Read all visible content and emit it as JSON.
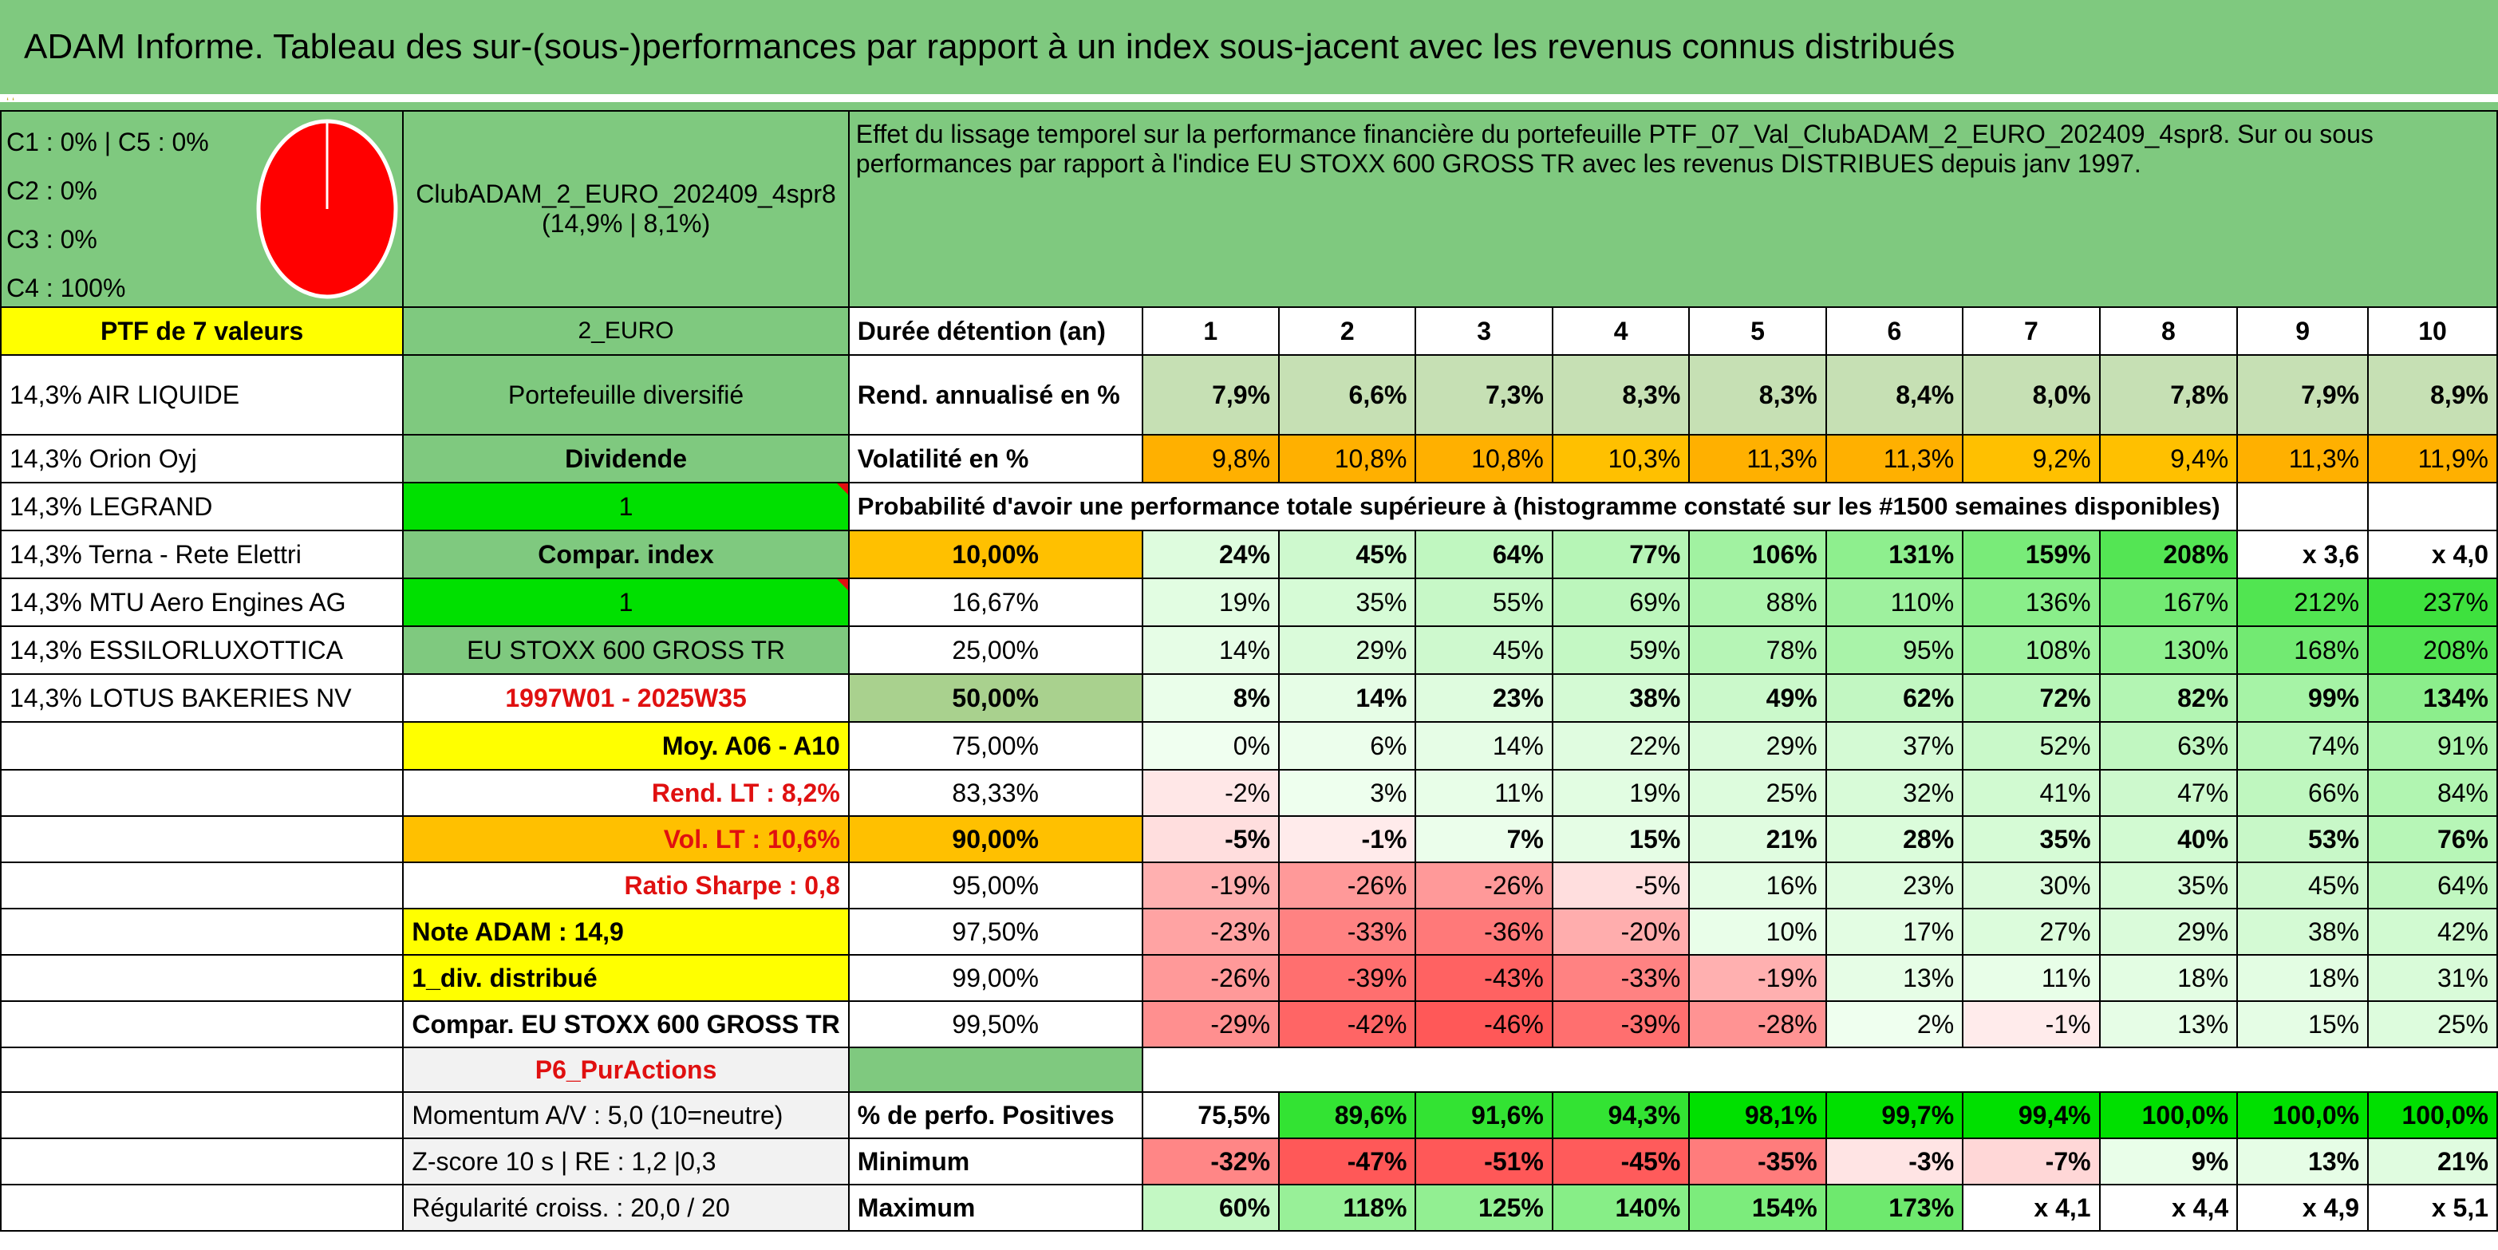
{
  "title": "ADAM Informe. Tableau des sur-(sous-)performances par rapport à un index sous-jacent avec les revenus connus distribués",
  "composition": {
    "lines": [
      "C1 : 0% | C5 : 0%",
      "C2 : 0%",
      "C3 : 0%",
      "C4 : 100%"
    ],
    "pie_color": "#ff0000"
  },
  "fund": {
    "name": "ClubADAM_2_EURO_202409_4spr8",
    "stats": "(14,9% | 8,1%)"
  },
  "description": "Effet du lissage temporel sur la performance financière du portefeuille PTF_07_Val_ClubADAM_2_EURO_202409_4spr8. Sur ou sous performances par rapport à l'indice EU STOXX 600 GROSS TR avec les revenus DISTRIBUES depuis janv 1997.",
  "ptf_label": "PTF de 7 valeurs",
  "holdings": [
    "14,3% AIR LIQUIDE",
    "14,3% Orion Oyj",
    "14,3% LEGRAND",
    "14,3% Terna - Rete Elettri",
    "14,3% MTU Aero Engines AG",
    "14,3% ESSILORLUXOTTICA",
    "14,3% LOTUS BAKERIES NV"
  ],
  "params": {
    "currency": "2_EURO",
    "portfolio_type": "Portefeuille diversifié",
    "dividende_label": "Dividende",
    "dividende_value": "1",
    "compar_label": "Compar. index",
    "compar_value": "1",
    "index_name": "EU STOXX 600 GROSS TR",
    "period": "1997W01 - 2025W35",
    "moy": "Moy. A06 - A10",
    "rend_lt": "Rend. LT : 8,2%",
    "vol_lt": "Vol. LT : 10,6%",
    "sharpe": "Ratio Sharpe : 0,8",
    "note": "Note ADAM : 14,9",
    "div": "1_div. distribué",
    "compar_index": "Compar. EU STOXX 600 GROSS TR",
    "p6": "P6_PurActions",
    "momentum": "Momentum A/V : 5,0 (10=neutre)",
    "zscore": "Z-score 10 s | RE : 1,2 |0,3",
    "regularite": "Régularité croiss. : 20,0 / 20"
  },
  "durations_label": "Durée détention (an)",
  "durations": [
    "1",
    "2",
    "3",
    "4",
    "5",
    "6",
    "7",
    "8",
    "9",
    "10"
  ],
  "rend_label": "Rend. annualisé en %",
  "rend": [
    "7,9%",
    "6,6%",
    "7,3%",
    "8,3%",
    "8,3%",
    "8,4%",
    "8,0%",
    "7,8%",
    "7,9%",
    "8,9%"
  ],
  "vol_label": "Volatilité en %",
  "vol": [
    "9,8%",
    "10,8%",
    "10,8%",
    "10,3%",
    "11,3%",
    "11,3%",
    "9,2%",
    "9,4%",
    "11,3%",
    "11,9%"
  ],
  "prob_title": "Probabilité d'avoir une performance totale supérieure à (histogramme constaté sur les #1500 semaines disponibles)",
  "prob_rows": [
    {
      "p": "10,00%",
      "v": [
        "24%",
        "45%",
        "64%",
        "77%",
        "106%",
        "131%",
        "159%",
        "208%",
        "x 3,6",
        "x 4,0"
      ]
    },
    {
      "p": "16,67%",
      "v": [
        "19%",
        "35%",
        "55%",
        "69%",
        "88%",
        "110%",
        "136%",
        "167%",
        "212%",
        "237%"
      ]
    },
    {
      "p": "25,00%",
      "v": [
        "14%",
        "29%",
        "45%",
        "59%",
        "78%",
        "95%",
        "108%",
        "130%",
        "168%",
        "208%"
      ]
    },
    {
      "p": "50,00%",
      "v": [
        "8%",
        "14%",
        "23%",
        "38%",
        "49%",
        "62%",
        "72%",
        "82%",
        "99%",
        "134%"
      ]
    },
    {
      "p": "75,00%",
      "v": [
        "0%",
        "6%",
        "14%",
        "22%",
        "29%",
        "37%",
        "52%",
        "63%",
        "74%",
        "91%"
      ]
    },
    {
      "p": "83,33%",
      "v": [
        "-2%",
        "3%",
        "11%",
        "19%",
        "25%",
        "32%",
        "41%",
        "47%",
        "66%",
        "84%"
      ]
    },
    {
      "p": "90,00%",
      "v": [
        "-5%",
        "-1%",
        "7%",
        "15%",
        "21%",
        "28%",
        "35%",
        "40%",
        "53%",
        "76%"
      ]
    },
    {
      "p": "95,00%",
      "v": [
        "-19%",
        "-26%",
        "-26%",
        "-5%",
        "16%",
        "23%",
        "30%",
        "35%",
        "45%",
        "64%"
      ]
    },
    {
      "p": "97,50%",
      "v": [
        "-23%",
        "-33%",
        "-36%",
        "-20%",
        "10%",
        "17%",
        "27%",
        "29%",
        "38%",
        "42%"
      ]
    },
    {
      "p": "99,00%",
      "v": [
        "-26%",
        "-39%",
        "-43%",
        "-33%",
        "-19%",
        "13%",
        "11%",
        "18%",
        "18%",
        "31%"
      ]
    },
    {
      "p": "99,50%",
      "v": [
        "-29%",
        "-42%",
        "-46%",
        "-39%",
        "-28%",
        "2%",
        "-1%",
        "13%",
        "15%",
        "25%"
      ]
    }
  ],
  "pos_label": "% de perfo. Positives",
  "pos": [
    "75,5%",
    "89,6%",
    "91,6%",
    "94,3%",
    "98,1%",
    "99,7%",
    "99,4%",
    "100,0%",
    "100,0%",
    "100,0%"
  ],
  "min_label": "Minimum",
  "min": [
    "-32%",
    "-47%",
    "-51%",
    "-45%",
    "-35%",
    "-3%",
    "-7%",
    "9%",
    "13%",
    "21%"
  ],
  "max_label": "Maximum",
  "max": [
    "60%",
    "118%",
    "125%",
    "140%",
    "154%",
    "173%",
    "x 4,1",
    "x 4,4",
    "x 4,9",
    "x 5,1"
  ]
}
